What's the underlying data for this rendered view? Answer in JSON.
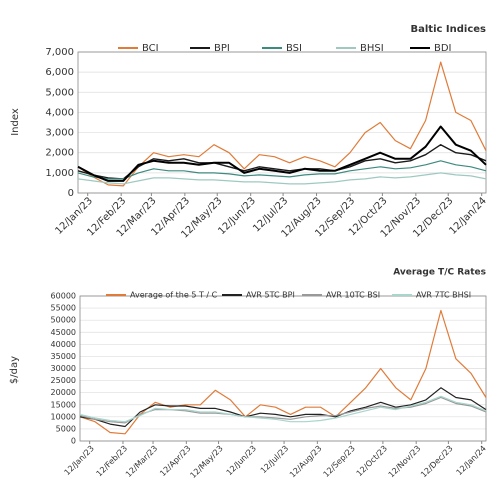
{
  "chart_data": [
    {
      "type": "line",
      "title": "Baltic Indices",
      "y_label": "Index",
      "x": [
        "2023-01-03",
        "2023-01-17",
        "2023-01-31",
        "2023-02-14",
        "2023-02-28",
        "2023-03-14",
        "2023-03-28",
        "2023-04-11",
        "2023-04-25",
        "2023-05-09",
        "2023-05-23",
        "2023-06-06",
        "2023-06-20",
        "2023-07-04",
        "2023-07-18",
        "2023-08-01",
        "2023-08-15",
        "2023-08-29",
        "2023-09-12",
        "2023-09-26",
        "2023-10-10",
        "2023-10-24",
        "2023-11-07",
        "2023-11-21",
        "2023-12-05",
        "2023-12-19",
        "2024-01-02",
        "2024-01-16"
      ],
      "xlim": [
        "2023-01-03",
        "2024-01-16"
      ],
      "xticks": [
        {
          "value": "2023-01-12",
          "label": "12/Jan/23"
        },
        {
          "value": "2023-02-12",
          "label": "12/Feb/23"
        },
        {
          "value": "2023-03-12",
          "label": "12/Mar/23"
        },
        {
          "value": "2023-04-12",
          "label": "12/Apr/23"
        },
        {
          "value": "2023-05-12",
          "label": "12/May/23"
        },
        {
          "value": "2023-06-12",
          "label": "12/Jun/23"
        },
        {
          "value": "2023-07-12",
          "label": "12/Jul/23"
        },
        {
          "value": "2023-08-12",
          "label": "12/Aug/23"
        },
        {
          "value": "2023-09-12",
          "label": "12/Sep/23"
        },
        {
          "value": "2023-10-12",
          "label": "12/Oct/23"
        },
        {
          "value": "2023-11-12",
          "label": "12/Nov/23"
        },
        {
          "value": "2023-12-12",
          "label": "12/Dec/23"
        },
        {
          "value": "2024-01-12",
          "label": "12/Jan/24"
        }
      ],
      "ylim": [
        0,
        7000
      ],
      "yticks": [
        0,
        {
          "value": 1000,
          "label": "1,000"
        },
        {
          "value": 2000,
          "label": "2,000"
        },
        {
          "value": 3000,
          "label": "3,000"
        },
        {
          "value": 4000,
          "label": "4,000"
        },
        {
          "value": 5000,
          "label": "5,000"
        },
        {
          "value": 6000,
          "label": "6,000"
        },
        {
          "value": 7000,
          "label": "7,000"
        }
      ],
      "grid": true,
      "series": [
        {
          "name": "BCI",
          "color": "#e07b39",
          "values": [
            1300,
            800,
            400,
            350,
            1300,
            2000,
            1800,
            1900,
            1800,
            2400,
            2000,
            1200,
            1900,
            1800,
            1500,
            1800,
            1600,
            1300,
            2000,
            3000,
            3500,
            2600,
            2200,
            3600,
            6500,
            4000,
            3600,
            2100
          ]
        },
        {
          "name": "BPI",
          "color": "#1a1a1a",
          "values": [
            1100,
            900,
            750,
            700,
            1300,
            1700,
            1600,
            1700,
            1500,
            1500,
            1300,
            1100,
            1300,
            1200,
            1100,
            1200,
            1200,
            1100,
            1300,
            1600,
            1700,
            1500,
            1600,
            1900,
            2400,
            2000,
            1900,
            1600
          ]
        },
        {
          "name": "BSI",
          "color": "#3d8a7f",
          "values": [
            1000,
            800,
            700,
            700,
            1000,
            1200,
            1100,
            1100,
            1000,
            1000,
            950,
            850,
            900,
            850,
            800,
            900,
            950,
            950,
            1100,
            1200,
            1300,
            1200,
            1250,
            1400,
            1600,
            1400,
            1300,
            1100
          ]
        },
        {
          "name": "BHSI",
          "color": "#9fc9c0",
          "values": [
            700,
            600,
            500,
            450,
            600,
            750,
            750,
            700,
            650,
            650,
            600,
            550,
            550,
            500,
            450,
            450,
            500,
            550,
            650,
            700,
            800,
            750,
            800,
            900,
            1000,
            900,
            850,
            700
          ]
        },
        {
          "name": "BDI",
          "color": "#000000",
          "values": [
            1300,
            900,
            600,
            600,
            1400,
            1600,
            1500,
            1500,
            1400,
            1500,
            1500,
            1000,
            1200,
            1100,
            1000,
            1200,
            1100,
            1100,
            1400,
            1700,
            2000,
            1700,
            1700,
            2300,
            3300,
            2400,
            2100,
            1400
          ]
        }
      ]
    },
    {
      "type": "line",
      "title": "Average T/C Rates",
      "y_label": "$/day",
      "x": [
        "2023-01-03",
        "2023-01-17",
        "2023-01-31",
        "2023-02-14",
        "2023-02-28",
        "2023-03-14",
        "2023-03-28",
        "2023-04-11",
        "2023-04-25",
        "2023-05-09",
        "2023-05-23",
        "2023-06-06",
        "2023-06-20",
        "2023-07-04",
        "2023-07-18",
        "2023-08-01",
        "2023-08-15",
        "2023-08-29",
        "2023-09-12",
        "2023-09-26",
        "2023-10-10",
        "2023-10-24",
        "2023-11-07",
        "2023-11-21",
        "2023-12-05",
        "2023-12-19",
        "2024-01-02",
        "2024-01-16"
      ],
      "xlim": [
        "2023-01-03",
        "2024-01-16"
      ],
      "xticks": [
        {
          "value": "2023-01-12",
          "label": "12/Jan/23"
        },
        {
          "value": "2023-02-12",
          "label": "12/Feb/23"
        },
        {
          "value": "2023-03-12",
          "label": "12/Mar/23"
        },
        {
          "value": "2023-04-12",
          "label": "12/Apr/23"
        },
        {
          "value": "2023-05-12",
          "label": "12/May/23"
        },
        {
          "value": "2023-06-12",
          "label": "12/Jun/23"
        },
        {
          "value": "2023-07-12",
          "label": "12/Jul/23"
        },
        {
          "value": "2023-08-12",
          "label": "12/Aug/23"
        },
        {
          "value": "2023-09-12",
          "label": "12/Sep/23"
        },
        {
          "value": "2023-10-12",
          "label": "12/Oct/23"
        },
        {
          "value": "2023-11-12",
          "label": "12/Nov/23"
        },
        {
          "value": "2023-12-12",
          "label": "12/Dec/23"
        },
        {
          "value": "2024-01-12",
          "label": "12/Jan/24"
        }
      ],
      "ylim": [
        0,
        60000
      ],
      "yticks": [
        0,
        5000,
        10000,
        15000,
        20000,
        25000,
        30000,
        35000,
        40000,
        45000,
        50000,
        55000,
        60000
      ],
      "grid": true,
      "series": [
        {
          "name": "Average of the 5 T / C",
          "color": "#e07b39",
          "values": [
            10000,
            8000,
            3500,
            3000,
            11000,
            16000,
            14000,
            15000,
            15000,
            21000,
            17000,
            10000,
            15000,
            14000,
            11000,
            14000,
            14000,
            10000,
            16000,
            22000,
            30000,
            22000,
            17000,
            30000,
            54000,
            34000,
            28000,
            18000
          ]
        },
        {
          "name": "AVR 5TC BPI",
          "color": "#222222",
          "values": [
            10000,
            9000,
            7000,
            6000,
            12000,
            15000,
            14500,
            14500,
            13500,
            13500,
            12000,
            10000,
            11500,
            11000,
            10000,
            11000,
            11000,
            10000,
            12500,
            14000,
            16000,
            14000,
            15000,
            17000,
            22000,
            18000,
            17000,
            13000
          ]
        },
        {
          "name": "AVR 10TC BSI",
          "color": "#999999",
          "values": [
            10500,
            9000,
            8000,
            7500,
            11000,
            13000,
            13000,
            12500,
            11500,
            11500,
            11000,
            10000,
            10000,
            9500,
            9000,
            10000,
            10500,
            10500,
            12000,
            13500,
            14500,
            13500,
            14000,
            15500,
            18000,
            15500,
            14500,
            12000
          ]
        },
        {
          "name": "AVR 7TC BHSI",
          "color": "#a8d5cc",
          "values": [
            11000,
            9500,
            8500,
            8000,
            10500,
            13500,
            13000,
            13000,
            12000,
            12000,
            11000,
            10000,
            9500,
            9000,
            8000,
            8000,
            8500,
            9500,
            11000,
            12500,
            14000,
            13000,
            14500,
            16000,
            18500,
            16000,
            15000,
            12500
          ]
        }
      ]
    }
  ]
}
